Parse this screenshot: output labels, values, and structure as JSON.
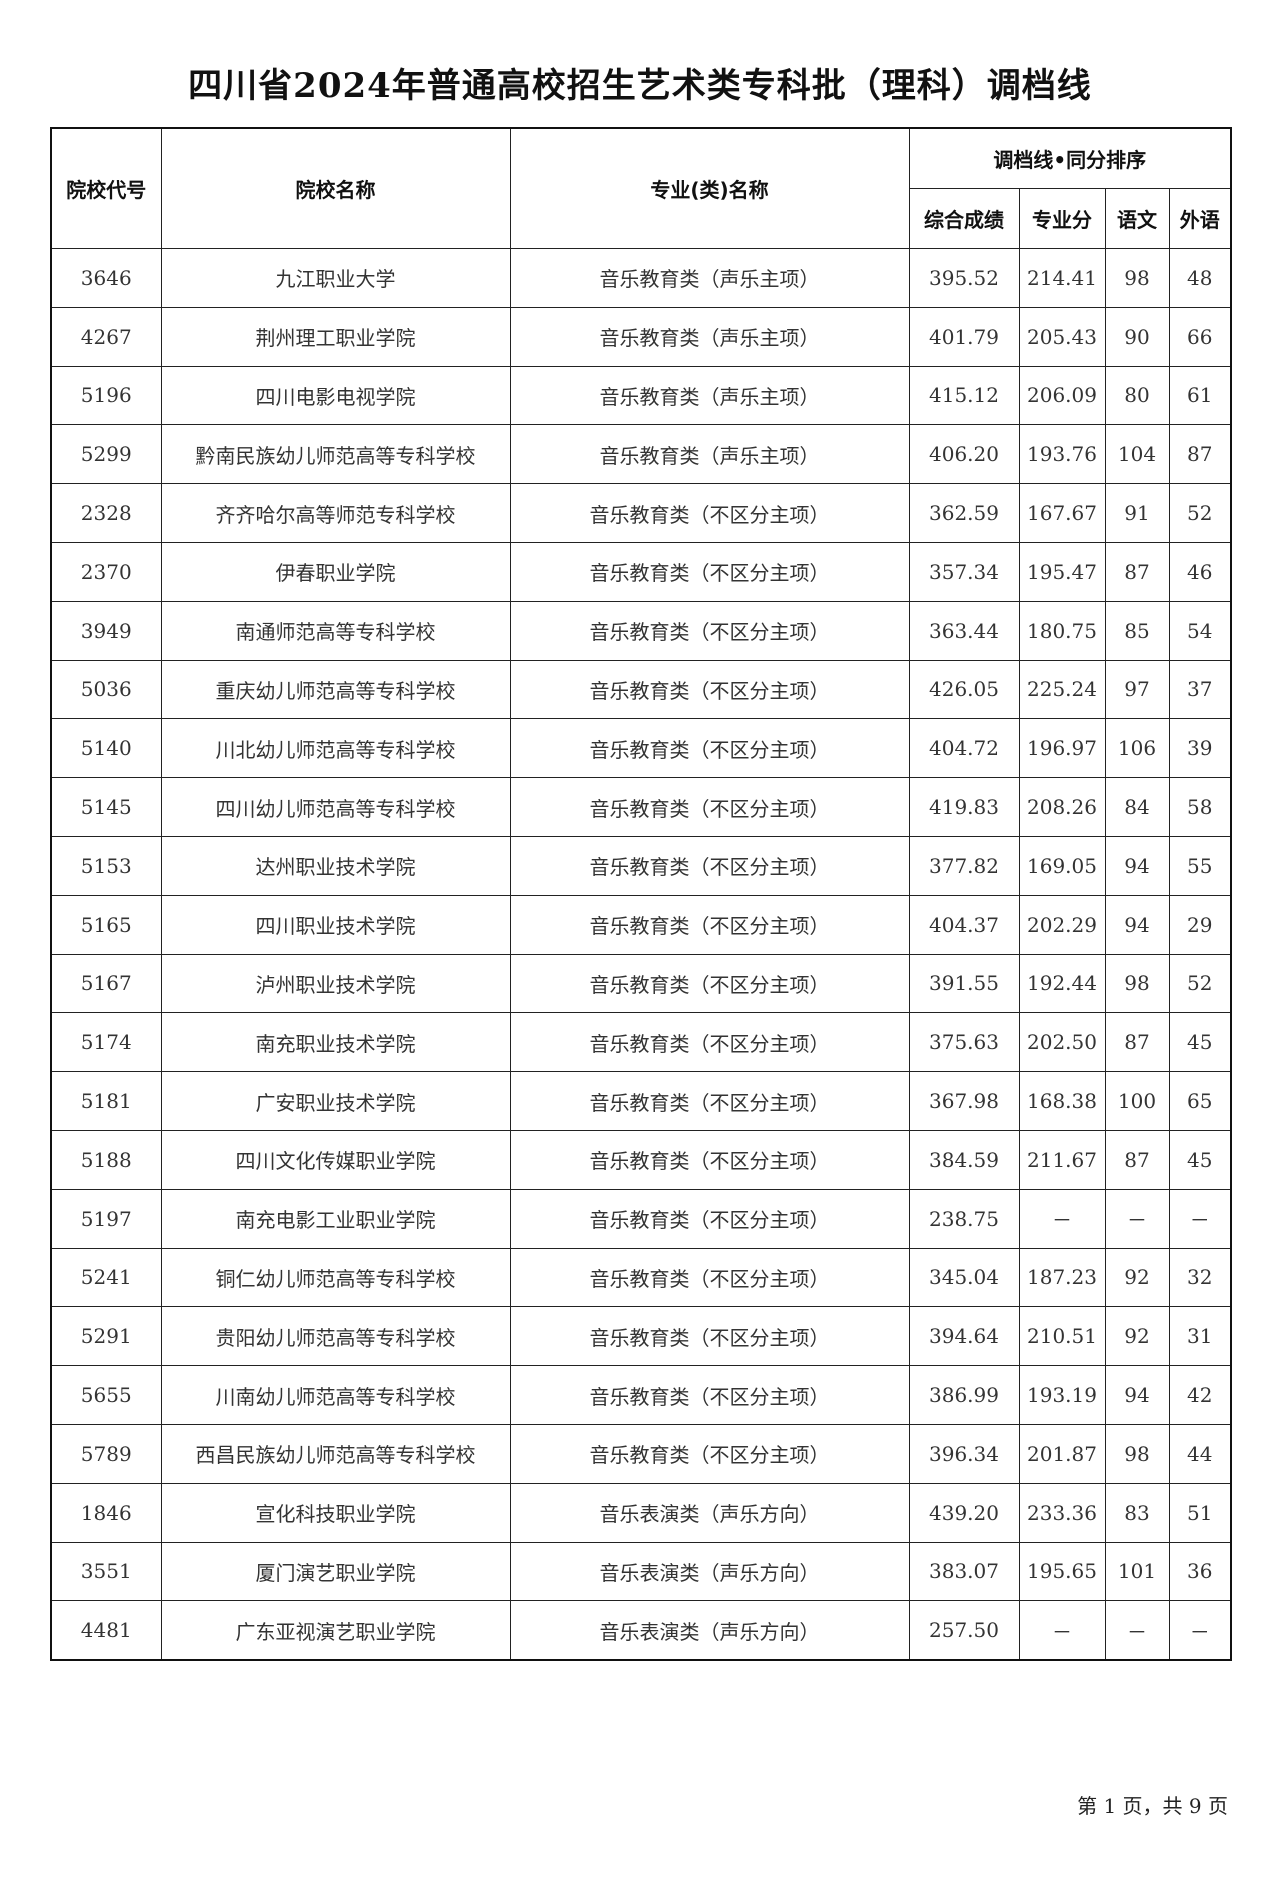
{
  "title": "四川省2024年普通高校招生艺术类专科批（理科）调档线",
  "headers": {
    "code": "院校代号",
    "school": "院校名称",
    "major": "专业(类)名称",
    "group": "调档线•同分排序",
    "total": "综合成绩",
    "prof": "专业分",
    "chinese": "语文",
    "foreign": "外语"
  },
  "rows": [
    [
      "3646",
      "九江职业大学",
      "音乐教育类（声乐主项）",
      "395.52",
      "214.41",
      "98",
      "48"
    ],
    [
      "4267",
      "荆州理工职业学院",
      "音乐教育类（声乐主项）",
      "401.79",
      "205.43",
      "90",
      "66"
    ],
    [
      "5196",
      "四川电影电视学院",
      "音乐教育类（声乐主项）",
      "415.12",
      "206.09",
      "80",
      "61"
    ],
    [
      "5299",
      "黔南民族幼儿师范高等专科学校",
      "音乐教育类（声乐主项）",
      "406.20",
      "193.76",
      "104",
      "87"
    ],
    [
      "2328",
      "齐齐哈尔高等师范专科学校",
      "音乐教育类（不区分主项）",
      "362.59",
      "167.67",
      "91",
      "52"
    ],
    [
      "2370",
      "伊春职业学院",
      "音乐教育类（不区分主项）",
      "357.34",
      "195.47",
      "87",
      "46"
    ],
    [
      "3949",
      "南通师范高等专科学校",
      "音乐教育类（不区分主项）",
      "363.44",
      "180.75",
      "85",
      "54"
    ],
    [
      "5036",
      "重庆幼儿师范高等专科学校",
      "音乐教育类（不区分主项）",
      "426.05",
      "225.24",
      "97",
      "37"
    ],
    [
      "5140",
      "川北幼儿师范高等专科学校",
      "音乐教育类（不区分主项）",
      "404.72",
      "196.97",
      "106",
      "39"
    ],
    [
      "5145",
      "四川幼儿师范高等专科学校",
      "音乐教育类（不区分主项）",
      "419.83",
      "208.26",
      "84",
      "58"
    ],
    [
      "5153",
      "达州职业技术学院",
      "音乐教育类（不区分主项）",
      "377.82",
      "169.05",
      "94",
      "55"
    ],
    [
      "5165",
      "四川职业技术学院",
      "音乐教育类（不区分主项）",
      "404.37",
      "202.29",
      "94",
      "29"
    ],
    [
      "5167",
      "泸州职业技术学院",
      "音乐教育类（不区分主项）",
      "391.55",
      "192.44",
      "98",
      "52"
    ],
    [
      "5174",
      "南充职业技术学院",
      "音乐教育类（不区分主项）",
      "375.63",
      "202.50",
      "87",
      "45"
    ],
    [
      "5181",
      "广安职业技术学院",
      "音乐教育类（不区分主项）",
      "367.98",
      "168.38",
      "100",
      "65"
    ],
    [
      "5188",
      "四川文化传媒职业学院",
      "音乐教育类（不区分主项）",
      "384.59",
      "211.67",
      "87",
      "45"
    ],
    [
      "5197",
      "南充电影工业职业学院",
      "音乐教育类（不区分主项）",
      "238.75",
      "－",
      "－",
      "－"
    ],
    [
      "5241",
      "铜仁幼儿师范高等专科学校",
      "音乐教育类（不区分主项）",
      "345.04",
      "187.23",
      "92",
      "32"
    ],
    [
      "5291",
      "贵阳幼儿师范高等专科学校",
      "音乐教育类（不区分主项）",
      "394.64",
      "210.51",
      "92",
      "31"
    ],
    [
      "5655",
      "川南幼儿师范高等专科学校",
      "音乐教育类（不区分主项）",
      "386.99",
      "193.19",
      "94",
      "42"
    ],
    [
      "5789",
      "西昌民族幼儿师范高等专科学校",
      "音乐教育类（不区分主项）",
      "396.34",
      "201.87",
      "98",
      "44"
    ],
    [
      "1846",
      "宣化科技职业学院",
      "音乐表演类（声乐方向）",
      "439.20",
      "233.36",
      "83",
      "51"
    ],
    [
      "3551",
      "厦门演艺职业学院",
      "音乐表演类（声乐方向）",
      "383.07",
      "195.65",
      "101",
      "36"
    ],
    [
      "4481",
      "广东亚视演艺职业学院",
      "音乐表演类（声乐方向）",
      "257.50",
      "－",
      "－",
      "－"
    ]
  ],
  "footer": "第 1 页，共 9 页"
}
